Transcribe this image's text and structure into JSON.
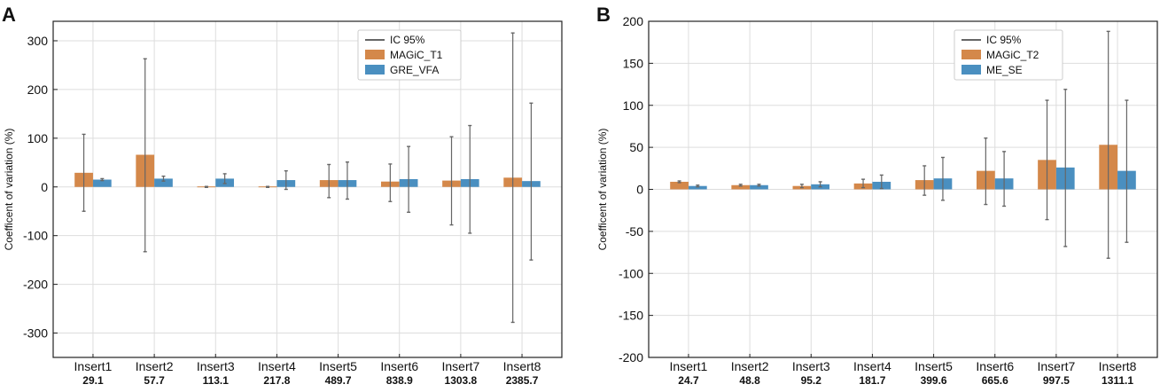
{
  "colors": {
    "series1": "#d4884a",
    "series2": "#4a8fc0",
    "errorbar": "#666666",
    "grid": "#dddddd",
    "frame": "#222222"
  },
  "chart_data": [
    {
      "type": "bar",
      "panel_label": "A",
      "ylabel": "Coefficent of variation (%)",
      "ylim": [
        -350,
        340
      ],
      "yticks": [
        -300,
        -200,
        -100,
        0,
        100,
        200,
        300
      ],
      "categories": [
        "Insert1",
        "Insert2",
        "Insert3",
        "Insert4",
        "Insert5",
        "Insert6",
        "Insert7",
        "Insert8"
      ],
      "sublabels": [
        "29.1",
        "57.7",
        "113.1",
        "217.8",
        "489.7",
        "838.9",
        "1303.8",
        "2385.7"
      ],
      "legend": {
        "placement": "top-right",
        "errorbar_label": "IC 95%",
        "entries": [
          "MAGiC_T1",
          "GRE_VFA"
        ]
      },
      "series": [
        {
          "name": "MAGiC_T1",
          "values": [
            29,
            66,
            1,
            1,
            14,
            11,
            13,
            19
          ],
          "ci_low": [
            -50,
            -133,
            -1,
            -1,
            -22,
            -30,
            -78,
            -278
          ],
          "ci_high": [
            108,
            263,
            1,
            1,
            46,
            47,
            103,
            316
          ]
        },
        {
          "name": "GRE_VFA",
          "values": [
            15,
            17,
            17,
            14,
            14,
            16,
            16,
            12
          ],
          "ci_low": [
            13,
            12,
            7,
            -5,
            -25,
            -52,
            -95,
            -150
          ],
          "ci_high": [
            17,
            22,
            27,
            33,
            51,
            83,
            126,
            172
          ]
        }
      ]
    },
    {
      "type": "bar",
      "panel_label": "B",
      "ylabel": "Coefficent of variation (%)",
      "ylim": [
        -200,
        200
      ],
      "yticks": [
        -200,
        -150,
        -100,
        -50,
        0,
        50,
        100,
        150,
        200
      ],
      "categories": [
        "Insert1",
        "Insert2",
        "Insert3",
        "Insert4",
        "Insert5",
        "Insert6",
        "Insert7",
        "Insert8"
      ],
      "sublabels": [
        "24.7",
        "48.8",
        "95.2",
        "181.7",
        "399.6",
        "665.6",
        "997.5",
        "1311.1"
      ],
      "legend": {
        "placement": "top-right",
        "errorbar_label": "IC 95%",
        "entries": [
          "MAGiC_T2",
          "ME_SE"
        ]
      },
      "series": [
        {
          "name": "MAGiC_T2",
          "values": [
            9,
            5,
            4,
            7,
            11,
            22,
            35,
            53
          ],
          "ci_low": [
            8,
            4,
            2,
            2,
            -7,
            -18,
            -36,
            -82
          ],
          "ci_high": [
            10,
            6,
            6,
            12,
            28,
            61,
            106,
            188
          ]
        },
        {
          "name": "ME_SE",
          "values": [
            4,
            5,
            6,
            9,
            13,
            13,
            26,
            22
          ],
          "ci_low": [
            3,
            4,
            3,
            1,
            -13,
            -20,
            -68,
            -63
          ],
          "ci_high": [
            5,
            6,
            9,
            17,
            38,
            45,
            119,
            106
          ]
        }
      ]
    }
  ]
}
